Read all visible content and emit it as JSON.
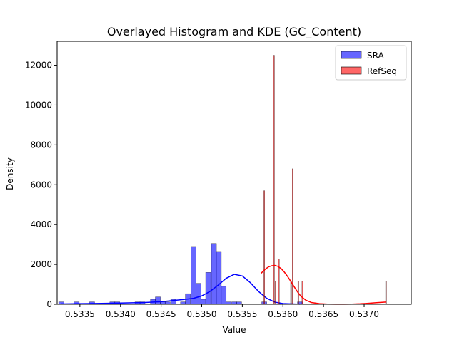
{
  "chart_data": {
    "type": "histogram",
    "title": "Overlayed Histogram and KDE (GC_Content)",
    "xlabel": "Value",
    "ylabel": "Density",
    "xlim": [
      0.53322,
      0.53758
    ],
    "ylim": [
      0,
      13200
    ],
    "x_ticks": [
      0.5335,
      0.534,
      0.5345,
      0.535,
      0.5355,
      0.536,
      0.5365,
      0.537
    ],
    "x_tick_labels": [
      "0.5335",
      "0.5340",
      "0.5345",
      "0.5350",
      "0.5355",
      "0.5360",
      "0.5365",
      "0.5370"
    ],
    "y_ticks": [
      0,
      2000,
      4000,
      6000,
      8000,
      10000,
      12000
    ],
    "y_tick_labels": [
      "0",
      "2000",
      "4000",
      "6000",
      "8000",
      "10000",
      "12000"
    ],
    "grid": false,
    "legend": {
      "position": "top-right",
      "entries": [
        "SRA",
        "RefSeq"
      ]
    },
    "series": [
      {
        "name": "SRA",
        "color": "#0000ff",
        "bar_alpha": 0.6,
        "bin_width": 6.25e-05,
        "bins": [
          {
            "x": 0.53327,
            "value": 120
          },
          {
            "x": 0.53333,
            "value": 0
          },
          {
            "x": 0.5334,
            "value": 0
          },
          {
            "x": 0.53346,
            "value": 120
          },
          {
            "x": 0.53352,
            "value": 0
          },
          {
            "x": 0.53358,
            "value": 0
          },
          {
            "x": 0.53365,
            "value": 120
          },
          {
            "x": 0.53371,
            "value": 0
          },
          {
            "x": 0.53377,
            "value": 0
          },
          {
            "x": 0.53383,
            "value": 0
          },
          {
            "x": 0.5339,
            "value": 120
          },
          {
            "x": 0.53396,
            "value": 120
          },
          {
            "x": 0.53402,
            "value": 0
          },
          {
            "x": 0.53408,
            "value": 0
          },
          {
            "x": 0.53415,
            "value": 0
          },
          {
            "x": 0.53421,
            "value": 120
          },
          {
            "x": 0.53427,
            "value": 120
          },
          {
            "x": 0.53433,
            "value": 0
          },
          {
            "x": 0.5344,
            "value": 250
          },
          {
            "x": 0.53446,
            "value": 370
          },
          {
            "x": 0.53452,
            "value": 120
          },
          {
            "x": 0.53458,
            "value": 120
          },
          {
            "x": 0.53465,
            "value": 250
          },
          {
            "x": 0.53471,
            "value": 0
          },
          {
            "x": 0.53477,
            "value": 120
          },
          {
            "x": 0.53483,
            "value": 530
          },
          {
            "x": 0.5349,
            "value": 2900
          },
          {
            "x": 0.53496,
            "value": 1050
          },
          {
            "x": 0.53502,
            "value": 250
          },
          {
            "x": 0.53508,
            "value": 1600
          },
          {
            "x": 0.53515,
            "value": 3050
          },
          {
            "x": 0.53521,
            "value": 2650
          },
          {
            "x": 0.53527,
            "value": 900
          },
          {
            "x": 0.53533,
            "value": 120
          },
          {
            "x": 0.5354,
            "value": 120
          },
          {
            "x": 0.53546,
            "value": 120
          },
          {
            "x": 0.53552,
            "value": 0
          },
          {
            "x": 0.53558,
            "value": 0
          },
          {
            "x": 0.53565,
            "value": 0
          },
          {
            "x": 0.53571,
            "value": 0
          },
          {
            "x": 0.53577,
            "value": 120
          },
          {
            "x": 0.53583,
            "value": 0
          },
          {
            "x": 0.5359,
            "value": 0
          },
          {
            "x": 0.53596,
            "value": 0
          },
          {
            "x": 0.53602,
            "value": 0
          },
          {
            "x": 0.53608,
            "value": 0
          },
          {
            "x": 0.53615,
            "value": 0
          },
          {
            "x": 0.53621,
            "value": 120
          }
        ],
        "kde": {
          "x": [
            0.53327,
            0.5335,
            0.5337,
            0.5339,
            0.5341,
            0.5343,
            0.5345,
            0.5346,
            0.5347,
            0.5348,
            0.5349,
            0.535,
            0.5351,
            0.5352,
            0.5353,
            0.5354,
            0.5355,
            0.5356,
            0.5357,
            0.5358,
            0.5359,
            0.536,
            0.53621
          ],
          "y": [
            20,
            30,
            40,
            55,
            70,
            90,
            130,
            170,
            210,
            250,
            300,
            420,
            640,
            950,
            1300,
            1500,
            1420,
            1080,
            640,
            300,
            110,
            35,
            5
          ]
        }
      },
      {
        "name": "RefSeq",
        "color": "#ff0000",
        "bar_alpha": 0.6,
        "bin_width": 1.16e-05,
        "bins": [
          {
            "x": 0.53577,
            "value": 5700
          },
          {
            "x": 0.53589,
            "value": 12500
          },
          {
            "x": 0.53591,
            "value": 1150
          },
          {
            "x": 0.53595,
            "value": 2280
          },
          {
            "x": 0.5361,
            "value": 1150
          },
          {
            "x": 0.53612,
            "value": 6800
          },
          {
            "x": 0.53619,
            "value": 1150
          },
          {
            "x": 0.53624,
            "value": 1150
          },
          {
            "x": 0.53727,
            "value": 1150
          }
        ],
        "kde": {
          "x": [
            0.53573,
            0.53578,
            0.53582,
            0.53586,
            0.5359,
            0.53594,
            0.53598,
            0.53602,
            0.53606,
            0.5361,
            0.53614,
            0.53618,
            0.53622,
            0.53628,
            0.53635,
            0.53645,
            0.53655,
            0.53665,
            0.53675,
            0.53685,
            0.53695,
            0.53705,
            0.53715,
            0.53722,
            0.53727
          ],
          "y": [
            1550,
            1750,
            1870,
            1930,
            1950,
            1900,
            1780,
            1600,
            1380,
            1130,
            870,
            620,
            410,
            210,
            90,
            30,
            10,
            5,
            5,
            10,
            25,
            50,
            80,
            100,
            110
          ]
        }
      }
    ]
  }
}
